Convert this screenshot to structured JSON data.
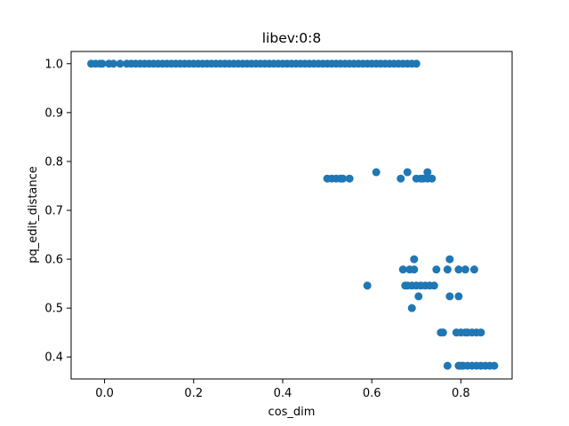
{
  "chart_data": {
    "type": "scatter",
    "title": "libev:0:8",
    "xlabel": "cos_dim",
    "ylabel": "pq_edit_distance",
    "xlim": [
      -0.075,
      0.915
    ],
    "ylim": [
      0.355,
      1.025
    ],
    "xticks": [
      0.0,
      0.2,
      0.4,
      0.6,
      0.8
    ],
    "yticks": [
      0.4,
      0.5,
      0.6,
      0.7,
      0.8,
      0.9,
      1.0
    ],
    "grid": false,
    "legend": "none",
    "color": "#1f77b4",
    "series": [
      {
        "x": [
          -0.03,
          -0.02,
          -0.01,
          -0.005,
          0.01,
          0.02,
          0.035,
          0.05,
          0.06,
          0.07,
          0.08,
          0.09,
          0.1,
          0.11,
          0.12,
          0.13,
          0.14,
          0.15,
          0.16,
          0.17,
          0.18,
          0.19,
          0.2,
          0.21,
          0.22,
          0.23,
          0.24,
          0.25,
          0.26,
          0.27,
          0.28,
          0.29,
          0.3,
          0.31,
          0.32,
          0.33,
          0.34,
          0.35,
          0.36,
          0.37,
          0.38,
          0.39,
          0.4,
          0.41,
          0.42,
          0.43,
          0.44,
          0.45,
          0.46,
          0.47,
          0.48,
          0.49,
          0.5,
          0.51,
          0.52,
          0.53,
          0.54,
          0.55,
          0.56,
          0.57,
          0.58,
          0.59,
          0.6,
          0.61,
          0.62,
          0.63,
          0.64,
          0.65,
          0.66,
          0.67,
          0.68,
          0.69,
          0.7,
          0.5,
          0.51,
          0.52,
          0.53,
          0.535,
          0.55,
          0.665,
          0.7,
          0.71,
          0.715,
          0.725,
          0.735,
          0.61,
          0.68,
          0.725,
          0.59,
          0.675,
          0.68,
          0.69,
          0.7,
          0.71,
          0.72,
          0.73,
          0.74,
          0.705,
          0.775,
          0.795,
          0.67,
          0.685,
          0.695,
          0.745,
          0.77,
          0.795,
          0.81,
          0.83,
          0.695,
          0.775,
          0.69,
          0.755,
          0.76,
          0.79,
          0.8,
          0.81,
          0.815,
          0.825,
          0.835,
          0.845,
          0.77,
          0.795,
          0.8,
          0.805,
          0.815,
          0.825,
          0.835,
          0.845,
          0.855,
          0.865,
          0.875
        ],
        "y": [
          1.0,
          1.0,
          1.0,
          1.0,
          1.0,
          1.0,
          1.0,
          1.0,
          1.0,
          1.0,
          1.0,
          1.0,
          1.0,
          1.0,
          1.0,
          1.0,
          1.0,
          1.0,
          1.0,
          1.0,
          1.0,
          1.0,
          1.0,
          1.0,
          1.0,
          1.0,
          1.0,
          1.0,
          1.0,
          1.0,
          1.0,
          1.0,
          1.0,
          1.0,
          1.0,
          1.0,
          1.0,
          1.0,
          1.0,
          1.0,
          1.0,
          1.0,
          1.0,
          1.0,
          1.0,
          1.0,
          1.0,
          1.0,
          1.0,
          1.0,
          1.0,
          1.0,
          1.0,
          1.0,
          1.0,
          1.0,
          1.0,
          1.0,
          1.0,
          1.0,
          1.0,
          1.0,
          1.0,
          1.0,
          1.0,
          1.0,
          1.0,
          1.0,
          1.0,
          1.0,
          1.0,
          1.0,
          1.0,
          0.765,
          0.765,
          0.765,
          0.765,
          0.765,
          0.765,
          0.765,
          0.765,
          0.765,
          0.765,
          0.765,
          0.765,
          0.778,
          0.778,
          0.778,
          0.546,
          0.546,
          0.546,
          0.546,
          0.546,
          0.546,
          0.546,
          0.546,
          0.546,
          0.524,
          0.524,
          0.524,
          0.579,
          0.579,
          0.579,
          0.579,
          0.579,
          0.579,
          0.579,
          0.579,
          0.6,
          0.6,
          0.5,
          0.45,
          0.45,
          0.45,
          0.45,
          0.45,
          0.45,
          0.45,
          0.45,
          0.45,
          0.382,
          0.382,
          0.382,
          0.382,
          0.382,
          0.382,
          0.382,
          0.382,
          0.382,
          0.382,
          0.382
        ]
      }
    ]
  }
}
